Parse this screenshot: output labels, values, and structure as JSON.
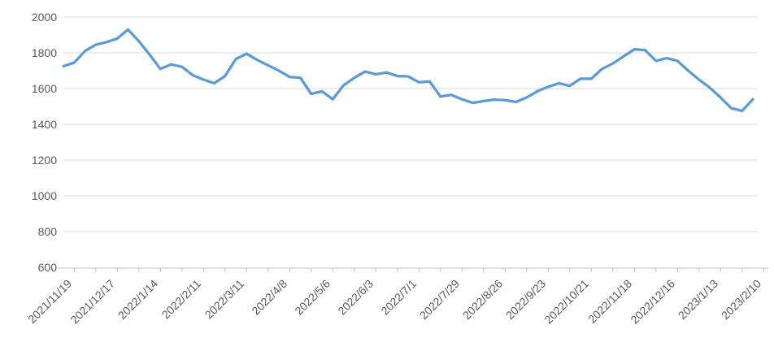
{
  "chart_data": {
    "type": "line",
    "title": "",
    "xlabel": "",
    "ylabel": "",
    "legend": false,
    "grid": true,
    "ylim": [
      600,
      2000
    ],
    "y_tick_step": 200,
    "y_tick_labels": [
      "600",
      "800",
      "1000",
      "1200",
      "1400",
      "1600",
      "1800",
      "2000"
    ],
    "x_tick_labels": [
      "2021/11/19",
      "2021/12/17",
      "2022/1/14",
      "2022/2/11",
      "2022/3/11",
      "2022/4/8",
      "2022/5/6",
      "2022/6/3",
      "2022/7/1",
      "2022/7/29",
      "2022/8/26",
      "2022/9/23",
      "2022/10/21",
      "2022/11/18",
      "2022/12/16",
      "2023/1/13",
      "2023/2/10"
    ],
    "x_label_interval_weeks": 4,
    "x": [
      "2021/11/19",
      "2021/11/26",
      "2021/12/3",
      "2021/12/10",
      "2021/12/17",
      "2021/12/24",
      "2021/12/31",
      "2022/1/7",
      "2022/1/14",
      "2022/1/21",
      "2022/1/28",
      "2022/2/4",
      "2022/2/11",
      "2022/2/18",
      "2022/2/25",
      "2022/3/4",
      "2022/3/11",
      "2022/3/18",
      "2022/3/25",
      "2022/4/1",
      "2022/4/8",
      "2022/4/15",
      "2022/4/22",
      "2022/4/29",
      "2022/5/6",
      "2022/5/13",
      "2022/5/20",
      "2022/5/27",
      "2022/6/3",
      "2022/6/10",
      "2022/6/17",
      "2022/6/24",
      "2022/7/1",
      "2022/7/8",
      "2022/7/15",
      "2022/7/22",
      "2022/7/29",
      "2022/8/5",
      "2022/8/12",
      "2022/8/19",
      "2022/8/26",
      "2022/9/2",
      "2022/9/9",
      "2022/9/16",
      "2022/9/23",
      "2022/9/30",
      "2022/10/7",
      "2022/10/14",
      "2022/10/21",
      "2022/10/28",
      "2022/11/4",
      "2022/11/11",
      "2022/11/18",
      "2022/11/25",
      "2022/12/2",
      "2022/12/9",
      "2022/12/16",
      "2022/12/23",
      "2022/12/30",
      "2023/1/6",
      "2023/1/13",
      "2023/1/20",
      "2023/1/27",
      "2023/2/3",
      "2023/2/10"
    ],
    "values": [
      1725,
      1745,
      1810,
      1845,
      1860,
      1880,
      1930,
      1865,
      1790,
      1710,
      1735,
      1722,
      1675,
      1650,
      1630,
      1670,
      1765,
      1795,
      1760,
      1730,
      1700,
      1665,
      1660,
      1570,
      1585,
      1540,
      1618,
      1660,
      1695,
      1680,
      1690,
      1670,
      1668,
      1635,
      1640,
      1555,
      1565,
      1540,
      1520,
      1530,
      1538,
      1535,
      1525,
      1550,
      1585,
      1610,
      1630,
      1615,
      1655,
      1655,
      1710,
      1740,
      1780,
      1820,
      1815,
      1755,
      1770,
      1755,
      1700,
      1650,
      1605,
      1550,
      1490,
      1475,
      1540
    ],
    "colors": {
      "line": "#5B9BD5",
      "gridline": "#D9D9D9",
      "axis": "#BFBFBF",
      "tick_label": "#595959",
      "background": "#FFFFFF"
    }
  }
}
